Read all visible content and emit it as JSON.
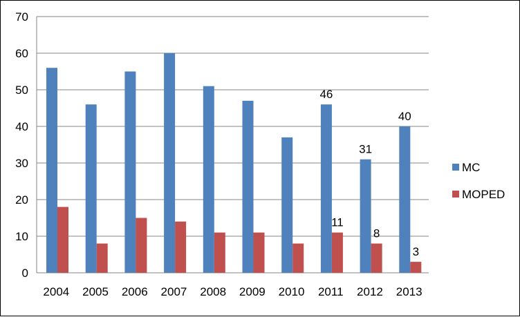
{
  "chart_data": {
    "type": "bar",
    "title": "",
    "xlabel": "",
    "ylabel": "",
    "categories": [
      "2004",
      "2005",
      "2006",
      "2007",
      "2008",
      "2009",
      "2010",
      "2011",
      "2012",
      "2013"
    ],
    "ylim": [
      0,
      70
    ],
    "yticks": [
      0,
      10,
      20,
      30,
      40,
      50,
      60,
      70
    ],
    "grid": true,
    "legend_position": "right",
    "series": [
      {
        "name": "MC",
        "color": "#4F81BD",
        "values": [
          56,
          46,
          55,
          60,
          51,
          47,
          37,
          46,
          31,
          40
        ],
        "data_labels": [
          null,
          null,
          null,
          null,
          null,
          null,
          null,
          "46",
          "31",
          "40"
        ]
      },
      {
        "name": "MOPED",
        "color": "#C0504D",
        "values": [
          18,
          8,
          15,
          14,
          11,
          11,
          8,
          11,
          8,
          3
        ],
        "data_labels": [
          null,
          null,
          null,
          null,
          null,
          null,
          null,
          "11",
          "8",
          "3"
        ]
      }
    ]
  }
}
